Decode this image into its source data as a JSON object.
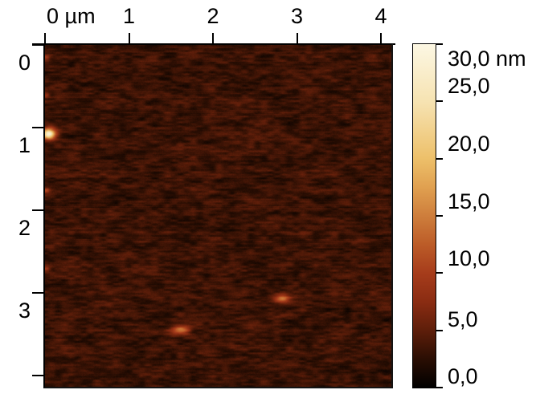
{
  "figure": {
    "kind": "AFM topography scan with colorbar",
    "background_color": "#ffffff",
    "text_color": "#000000"
  },
  "chart_data": {
    "type": "heatmap",
    "title": "",
    "x_axis": {
      "unit": "µm",
      "tick_values": [
        0,
        1,
        2,
        3,
        4
      ],
      "tick_labels": [
        "0 µm",
        "1",
        "2",
        "3",
        "4"
      ],
      "range_um": [
        0,
        4.12
      ]
    },
    "y_axis": {
      "unit": "µm",
      "tick_values": [
        0,
        1,
        2,
        3,
        4
      ],
      "tick_labels": [
        "0",
        "1",
        "2",
        "3",
        ""
      ],
      "range_um": [
        0,
        4.13
      ]
    },
    "colorbar": {
      "unit": "nm",
      "min_nm": 0,
      "max_nm": 30,
      "tick_values": [
        30,
        25,
        20,
        15,
        10,
        5,
        0
      ],
      "tick_labels": [
        "30,0 nm",
        "25,0",
        "20,0",
        "15,0",
        "10,0",
        "5,0",
        "0,0"
      ],
      "palette": [
        {
          "v": 0,
          "color": "#000000"
        },
        {
          "v": 2.5,
          "color": "#2a0e03"
        },
        {
          "v": 5,
          "color": "#5e1e0a"
        },
        {
          "v": 7.5,
          "color": "#8a2c12"
        },
        {
          "v": 10,
          "color": "#a63c1b"
        },
        {
          "v": 12.5,
          "color": "#bc5c28"
        },
        {
          "v": 15,
          "color": "#ce7e3c"
        },
        {
          "v": 17.5,
          "color": "#e0a050"
        },
        {
          "v": 20,
          "color": "#edc06a"
        },
        {
          "v": 25,
          "color": "#f6e3b2"
        },
        {
          "v": 30,
          "color": "#fcf7e3"
        }
      ]
    },
    "surface": {
      "mean_height_nm": 3.25,
      "roughness_sd_nm": 1.1,
      "texture": "horizontally streaked scan-line noise, dark red-brown"
    },
    "features": [
      {
        "name": "bright-particle",
        "x_um": 0.04,
        "y_um": 1.07,
        "rx_um": 0.055,
        "ry_um": 0.045,
        "peak_nm": 26
      },
      {
        "name": "particle",
        "x_um": 2.82,
        "y_um": 3.06,
        "rx_um": 0.065,
        "ry_um": 0.032,
        "peak_nm": 10
      },
      {
        "name": "particle",
        "x_um": 1.61,
        "y_um": 3.44,
        "rx_um": 0.075,
        "ry_um": 0.035,
        "peak_nm": 11
      },
      {
        "name": "edge-dot",
        "x_um": 0.01,
        "y_um": 0.15,
        "rx_um": 0.03,
        "ry_um": 0.025,
        "peak_nm": 4.5
      },
      {
        "name": "edge-dot",
        "x_um": 0.01,
        "y_um": 0.6,
        "rx_um": 0.03,
        "ry_um": 0.025,
        "peak_nm": 5.5
      },
      {
        "name": "edge-dot",
        "x_um": 0.01,
        "y_um": 1.75,
        "rx_um": 0.03,
        "ry_um": 0.025,
        "peak_nm": 6
      },
      {
        "name": "edge-dot",
        "x_um": 0.01,
        "y_um": 2.7,
        "rx_um": 0.035,
        "ry_um": 0.03,
        "peak_nm": 5.5
      }
    ]
  }
}
